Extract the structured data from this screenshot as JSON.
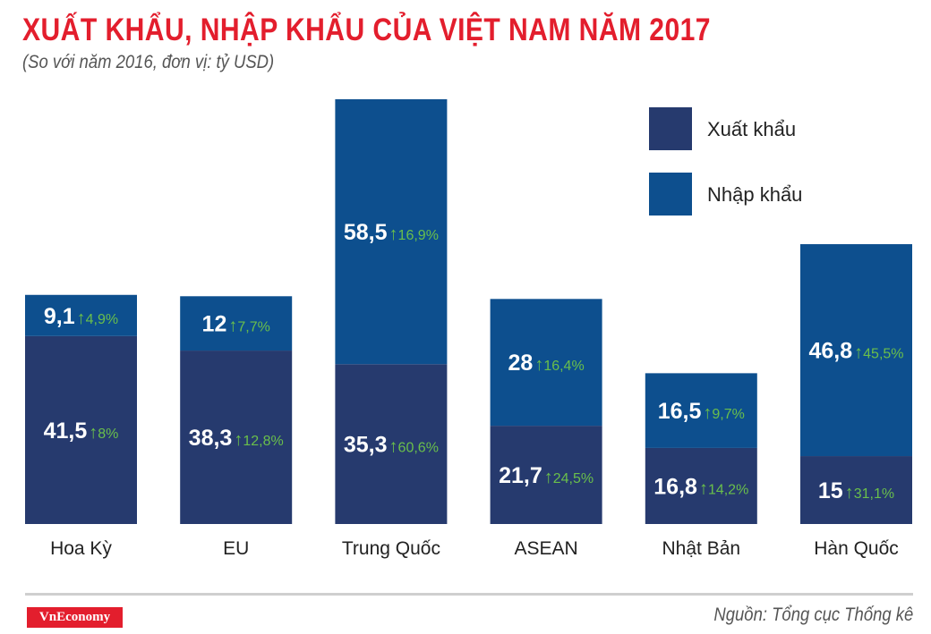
{
  "chart_data": {
    "type": "bar",
    "stacked": true,
    "title": "XUẤT KHẨU, NHẬP KHẨU CỦA VIỆT NAM NĂM 2017",
    "subtitle": "(So với năm 2016, đơn vị: tỷ USD)",
    "categories": [
      "Hoa Kỳ",
      "EU",
      "Trung Quốc",
      "ASEAN",
      "Nhật Bản",
      "Hàn Quốc"
    ],
    "series": [
      {
        "name": "Xuất khẩu",
        "color": "#263a6e",
        "values": [
          41.5,
          38.3,
          35.3,
          21.7,
          16.8,
          15
        ],
        "labels": [
          "41,5",
          "38,3",
          "35,3",
          "21,7",
          "16,8",
          "15"
        ],
        "growth": [
          "8%",
          "12,8%",
          "60,6%",
          "24,5%",
          "14,2%",
          "31,1%"
        ]
      },
      {
        "name": "Nhập khẩu",
        "color": "#0d4f8e",
        "values": [
          9.1,
          12,
          58.5,
          28,
          16.5,
          46.8
        ],
        "labels": [
          "9,1",
          "12",
          "58,5",
          "28",
          "16,5",
          "46,8"
        ],
        "growth": [
          "4,9%",
          "7,7%",
          "16,9%",
          "16,4%",
          "9,7%",
          "45,5%"
        ]
      }
    ],
    "growth_color": "#6abf4b",
    "legend": "top-right",
    "grid": false,
    "ylim": [
      0,
      93.8
    ]
  },
  "footer": {
    "logo": "VnEconomy",
    "source": "Nguồn: Tổng cục Thống kê"
  }
}
